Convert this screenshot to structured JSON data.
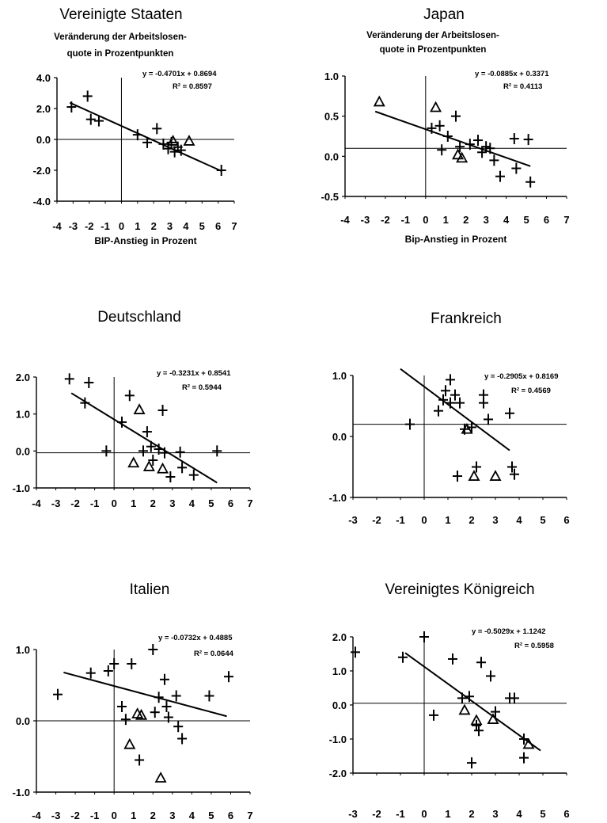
{
  "chart_data": [
    {
      "type": "scatter",
      "title": "Vereinigte Staaten",
      "ylabel_line1": "Veränderung der Arbeitslosen-",
      "ylabel_line2": "quote in Prozentpunkten",
      "xlabel": "BIP-Anstieg in Prozent",
      "xlim": [
        -4,
        7
      ],
      "ylim": [
        -4,
        4
      ],
      "xticks": [
        "-4",
        "-3",
        "-2",
        "-1",
        "0",
        "1",
        "2",
        "3",
        "4",
        "5",
        "6",
        "7"
      ],
      "yticks": [
        "4.0",
        "2.0",
        "0.0",
        "-2.0",
        "-4.0"
      ],
      "hline": 0.0,
      "vline": 0.0,
      "equation": "y = -0.4701x + 0.8694",
      "r2": "R² = 0.8597",
      "trend": {
        "slope": -0.4701,
        "intercept": 0.8694,
        "x_range": [
          -3.2,
          6.2
        ]
      },
      "series": [
        {
          "marker": "plus",
          "points": [
            [
              -3.1,
              2.1
            ],
            [
              -2.1,
              2.8
            ],
            [
              -1.9,
              1.3
            ],
            [
              -1.4,
              1.2
            ],
            [
              1.0,
              0.3
            ],
            [
              1.6,
              -0.2
            ],
            [
              2.2,
              0.7
            ],
            [
              2.6,
              -0.3
            ],
            [
              2.9,
              -0.6
            ],
            [
              3.1,
              -0.2
            ],
            [
              3.3,
              -0.8
            ],
            [
              3.5,
              -0.5
            ],
            [
              3.7,
              -0.7
            ],
            [
              6.2,
              -2.0
            ]
          ]
        },
        {
          "marker": "triangle",
          "points": [
            [
              3.2,
              -0.1
            ],
            [
              4.2,
              -0.1
            ]
          ]
        }
      ]
    },
    {
      "type": "scatter",
      "title": "Japan",
      "ylabel_line1": "Veränderung der Arbeitslosen-",
      "ylabel_line2": "quote in Prozentpunkten",
      "xlabel": "Bip-Anstieg in Prozent",
      "xlim": [
        -4,
        7
      ],
      "ylim": [
        -0.5,
        1.0
      ],
      "xticks": [
        "-4",
        "-3",
        "-2",
        "-1",
        "0",
        "1",
        "2",
        "3",
        "4",
        "5",
        "6",
        "7"
      ],
      "yticks": [
        "1.0",
        "0.5",
        "0.0",
        "-0.5"
      ],
      "hline": 0.1,
      "vline": 0.0,
      "equation": "y = -0.0885x + 0.3371",
      "r2": "R² = 0.4113",
      "trend": {
        "slope": -0.0885,
        "intercept": 0.3371,
        "x_range": [
          -2.5,
          5.2
        ]
      },
      "series": [
        {
          "marker": "plus",
          "points": [
            [
              0.3,
              0.35
            ],
            [
              0.7,
              0.38
            ],
            [
              0.8,
              0.08
            ],
            [
              1.1,
              0.25
            ],
            [
              1.5,
              0.5
            ],
            [
              1.7,
              0.12
            ],
            [
              2.2,
              0.15
            ],
            [
              2.6,
              0.2
            ],
            [
              2.8,
              0.05
            ],
            [
              3.0,
              0.12
            ],
            [
              3.2,
              0.1
            ],
            [
              3.4,
              -0.05
            ],
            [
              3.7,
              -0.25
            ],
            [
              4.4,
              0.22
            ],
            [
              4.5,
              -0.15
            ],
            [
              5.1,
              0.21
            ],
            [
              5.2,
              -0.32
            ]
          ]
        },
        {
          "marker": "triangle",
          "points": [
            [
              -2.3,
              0.68
            ],
            [
              0.5,
              0.61
            ],
            [
              1.6,
              0.02
            ],
            [
              1.8,
              -0.02
            ]
          ]
        }
      ]
    },
    {
      "type": "scatter",
      "title": "Deutschland",
      "xlim": [
        -4,
        7
      ],
      "ylim": [
        -1.0,
        2.0
      ],
      "xticks": [
        "-4",
        "-3",
        "-2",
        "-1",
        "0",
        "1",
        "2",
        "3",
        "4",
        "5",
        "6",
        "7"
      ],
      "yticks": [
        "2.0",
        "1.0",
        "0.0",
        "-1.0"
      ],
      "hline": -0.05,
      "vline": 0.0,
      "equation": "y = -0.3231x + 0.8541",
      "r2": "R² = 0.5944",
      "trend": {
        "slope": -0.3231,
        "intercept": 0.8541,
        "x_range": [
          -2.2,
          5.3
        ]
      },
      "series": [
        {
          "marker": "plus",
          "points": [
            [
              -2.3,
              1.95
            ],
            [
              -1.3,
              1.85
            ],
            [
              -1.5,
              1.3
            ],
            [
              -0.4,
              0.0
            ],
            [
              0.4,
              0.78
            ],
            [
              0.8,
              1.5
            ],
            [
              1.5,
              0.0
            ],
            [
              1.7,
              0.52
            ],
            [
              1.9,
              0.12
            ],
            [
              2.0,
              -0.25
            ],
            [
              2.3,
              0.05
            ],
            [
              2.5,
              1.1
            ],
            [
              2.6,
              -0.05
            ],
            [
              2.9,
              -0.7
            ],
            [
              3.4,
              -0.03
            ],
            [
              3.5,
              -0.45
            ],
            [
              4.1,
              -0.65
            ],
            [
              5.3,
              0.0
            ]
          ]
        },
        {
          "marker": "triangle",
          "points": [
            [
              1.0,
              -0.32
            ],
            [
              1.3,
              1.12
            ],
            [
              1.8,
              -0.42
            ],
            [
              2.5,
              -0.48
            ]
          ]
        }
      ]
    },
    {
      "type": "scatter",
      "title": "Frankreich",
      "xlim": [
        -3,
        6
      ],
      "ylim": [
        -1.0,
        1.0
      ],
      "xticks": [
        "-3",
        "-2",
        "-1",
        "0",
        "1",
        "2",
        "3",
        "4",
        "5",
        "6"
      ],
      "yticks": [
        "1.0",
        "0.0",
        "-1.0"
      ],
      "hline": 0.2,
      "vline": 0.0,
      "equation": "y = -0.2905x + 0.8169",
      "r2": "R² = 0.4569",
      "trend": {
        "slope": -0.2905,
        "intercept": 0.8169,
        "x_range": [
          -1.0,
          3.6
        ]
      },
      "series": [
        {
          "marker": "plus",
          "points": [
            [
              -0.6,
              0.2
            ],
            [
              0.6,
              0.42
            ],
            [
              0.8,
              0.6
            ],
            [
              0.9,
              0.75
            ],
            [
              1.1,
              0.93
            ],
            [
              1.1,
              0.55
            ],
            [
              1.3,
              0.68
            ],
            [
              1.5,
              0.55
            ],
            [
              1.4,
              -0.65
            ],
            [
              1.7,
              0.12
            ],
            [
              2.0,
              0.15
            ],
            [
              2.2,
              -0.5
            ],
            [
              2.5,
              0.68
            ],
            [
              2.5,
              0.55
            ],
            [
              2.7,
              0.28
            ],
            [
              3.6,
              0.38
            ],
            [
              3.7,
              -0.5
            ],
            [
              3.8,
              -0.62
            ]
          ]
        },
        {
          "marker": "triangle",
          "points": [
            [
              1.8,
              0.12
            ],
            [
              2.1,
              -0.65
            ],
            [
              3.0,
              -0.65
            ]
          ]
        }
      ]
    },
    {
      "type": "scatter",
      "title": "Italien",
      "xlim": [
        -4,
        7
      ],
      "ylim": [
        -1.0,
        1.0
      ],
      "xticks": [
        "-4",
        "-3",
        "-2",
        "-1",
        "0",
        "1",
        "2",
        "3",
        "4",
        "5",
        "6",
        "7"
      ],
      "yticks": [
        "1.0",
        "0.0",
        "-1.0"
      ],
      "hline": 0.0,
      "vline": 0.0,
      "equation": "y = -0.0732x + 0.4885",
      "r2": "R² = 0.0644",
      "trend": {
        "slope": -0.0732,
        "intercept": 0.4885,
        "x_range": [
          -2.6,
          5.8
        ]
      },
      "series": [
        {
          "marker": "plus",
          "points": [
            [
              -2.9,
              0.37
            ],
            [
              -1.2,
              0.67
            ],
            [
              -0.3,
              0.7
            ],
            [
              0.0,
              0.8
            ],
            [
              0.4,
              0.2
            ],
            [
              0.6,
              0.02
            ],
            [
              0.9,
              0.8
            ],
            [
              1.3,
              -0.55
            ],
            [
              2.0,
              1.0
            ],
            [
              2.1,
              0.12
            ],
            [
              2.3,
              0.33
            ],
            [
              2.6,
              0.58
            ],
            [
              2.7,
              0.2
            ],
            [
              2.8,
              0.05
            ],
            [
              3.2,
              0.35
            ],
            [
              3.3,
              -0.08
            ],
            [
              3.5,
              -0.25
            ],
            [
              4.9,
              0.35
            ],
            [
              5.9,
              0.62
            ]
          ]
        },
        {
          "marker": "triangle",
          "points": [
            [
              0.8,
              -0.33
            ],
            [
              1.2,
              0.1
            ],
            [
              1.4,
              0.08
            ],
            [
              2.4,
              -0.8
            ]
          ]
        }
      ]
    },
    {
      "type": "scatter",
      "title": "Vereinigtes Königreich",
      "xlim": [
        -3,
        6
      ],
      "ylim": [
        -2.0,
        2.0
      ],
      "xticks": [
        "-3",
        "-2",
        "-1",
        "0",
        "1",
        "2",
        "3",
        "4",
        "5",
        "6"
      ],
      "yticks": [
        "2.0",
        "1.0",
        "0.0",
        "-1.0",
        "-2.0"
      ],
      "hline": 0.05,
      "vline": 0.0,
      "equation": "y = -0.5029x + 1.1242",
      "r2": "R² = 0.5958",
      "trend": {
        "slope": -0.5029,
        "intercept": 1.1242,
        "x_range": [
          -0.8,
          4.9
        ]
      },
      "series": [
        {
          "marker": "plus",
          "points": [
            [
              -2.9,
              1.55
            ],
            [
              -0.9,
              1.4
            ],
            [
              0.0,
              2.0
            ],
            [
              0.4,
              -0.3
            ],
            [
              1.2,
              1.35
            ],
            [
              1.6,
              0.2
            ],
            [
              1.9,
              0.25
            ],
            [
              2.0,
              -1.7
            ],
            [
              2.2,
              -0.6
            ],
            [
              2.3,
              -0.75
            ],
            [
              2.4,
              1.25
            ],
            [
              2.8,
              0.85
            ],
            [
              3.0,
              -0.2
            ],
            [
              3.6,
              0.2
            ],
            [
              3.8,
              0.2
            ],
            [
              4.2,
              -1.0
            ],
            [
              4.2,
              -1.55
            ]
          ]
        },
        {
          "marker": "triangle",
          "points": [
            [
              1.7,
              -0.15
            ],
            [
              2.2,
              -0.45
            ],
            [
              2.9,
              -0.42
            ],
            [
              4.4,
              -1.15
            ]
          ]
        }
      ]
    }
  ]
}
